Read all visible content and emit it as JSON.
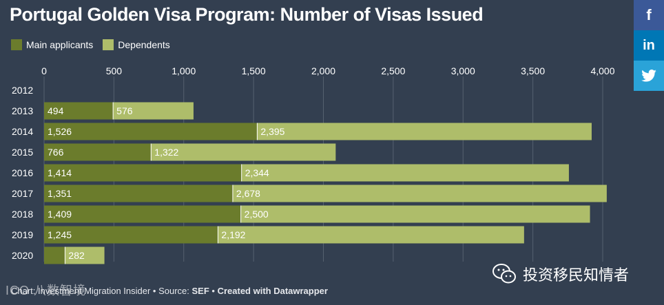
{
  "colors": {
    "background": "#333f50",
    "main": "#6b7c2c",
    "dependents": "#aebd6a",
    "grid": "#56616f",
    "text": "#ffffff"
  },
  "share": {
    "facebook": "f",
    "linkedin": "in",
    "twitter": "twitter"
  },
  "footer": {
    "prefix": "Chart: Investment Migration Insider • Source: ",
    "source": "SEF",
    "sep": " • ",
    "credit": "Created with Datawrapper"
  },
  "watermark": {
    "ocr_text": "ICO 八数智境",
    "wechat_text": "投资移民知情者"
  },
  "chart_data": {
    "type": "bar",
    "orientation": "horizontal",
    "stacked": true,
    "title": "Portugal Golden Visa Program: Number of Visas Issued",
    "xlabel": "",
    "ylabel": "",
    "xlim": [
      0,
      4000
    ],
    "ticks": [
      0,
      500,
      1000,
      1500,
      2000,
      2500,
      3000,
      3500,
      4000
    ],
    "tick_labels": [
      "0",
      "500",
      "1,000",
      "1,500",
      "2,000",
      "2,500",
      "3,000",
      "3,500",
      "4,000"
    ],
    "legend_position": "top-left",
    "grid": true,
    "categories": [
      "2012",
      "2013",
      "2014",
      "2015",
      "2016",
      "2017",
      "2018",
      "2019",
      "2020"
    ],
    "series": [
      {
        "name": "Main applicants",
        "values": [
          0,
          494,
          1526,
          766,
          1414,
          1351,
          1409,
          1245,
          150
        ],
        "labels": [
          "",
          "494",
          "1,526",
          "766",
          "1,414",
          "1,351",
          "1,409",
          "1,245",
          ""
        ]
      },
      {
        "name": "Dependents",
        "values": [
          0,
          576,
          2395,
          1322,
          2344,
          2678,
          2500,
          2192,
          282
        ],
        "labels": [
          "",
          "576",
          "2,395",
          "1,322",
          "2,344",
          "2,678",
          "2,500",
          "2,192",
          "282"
        ]
      }
    ]
  }
}
